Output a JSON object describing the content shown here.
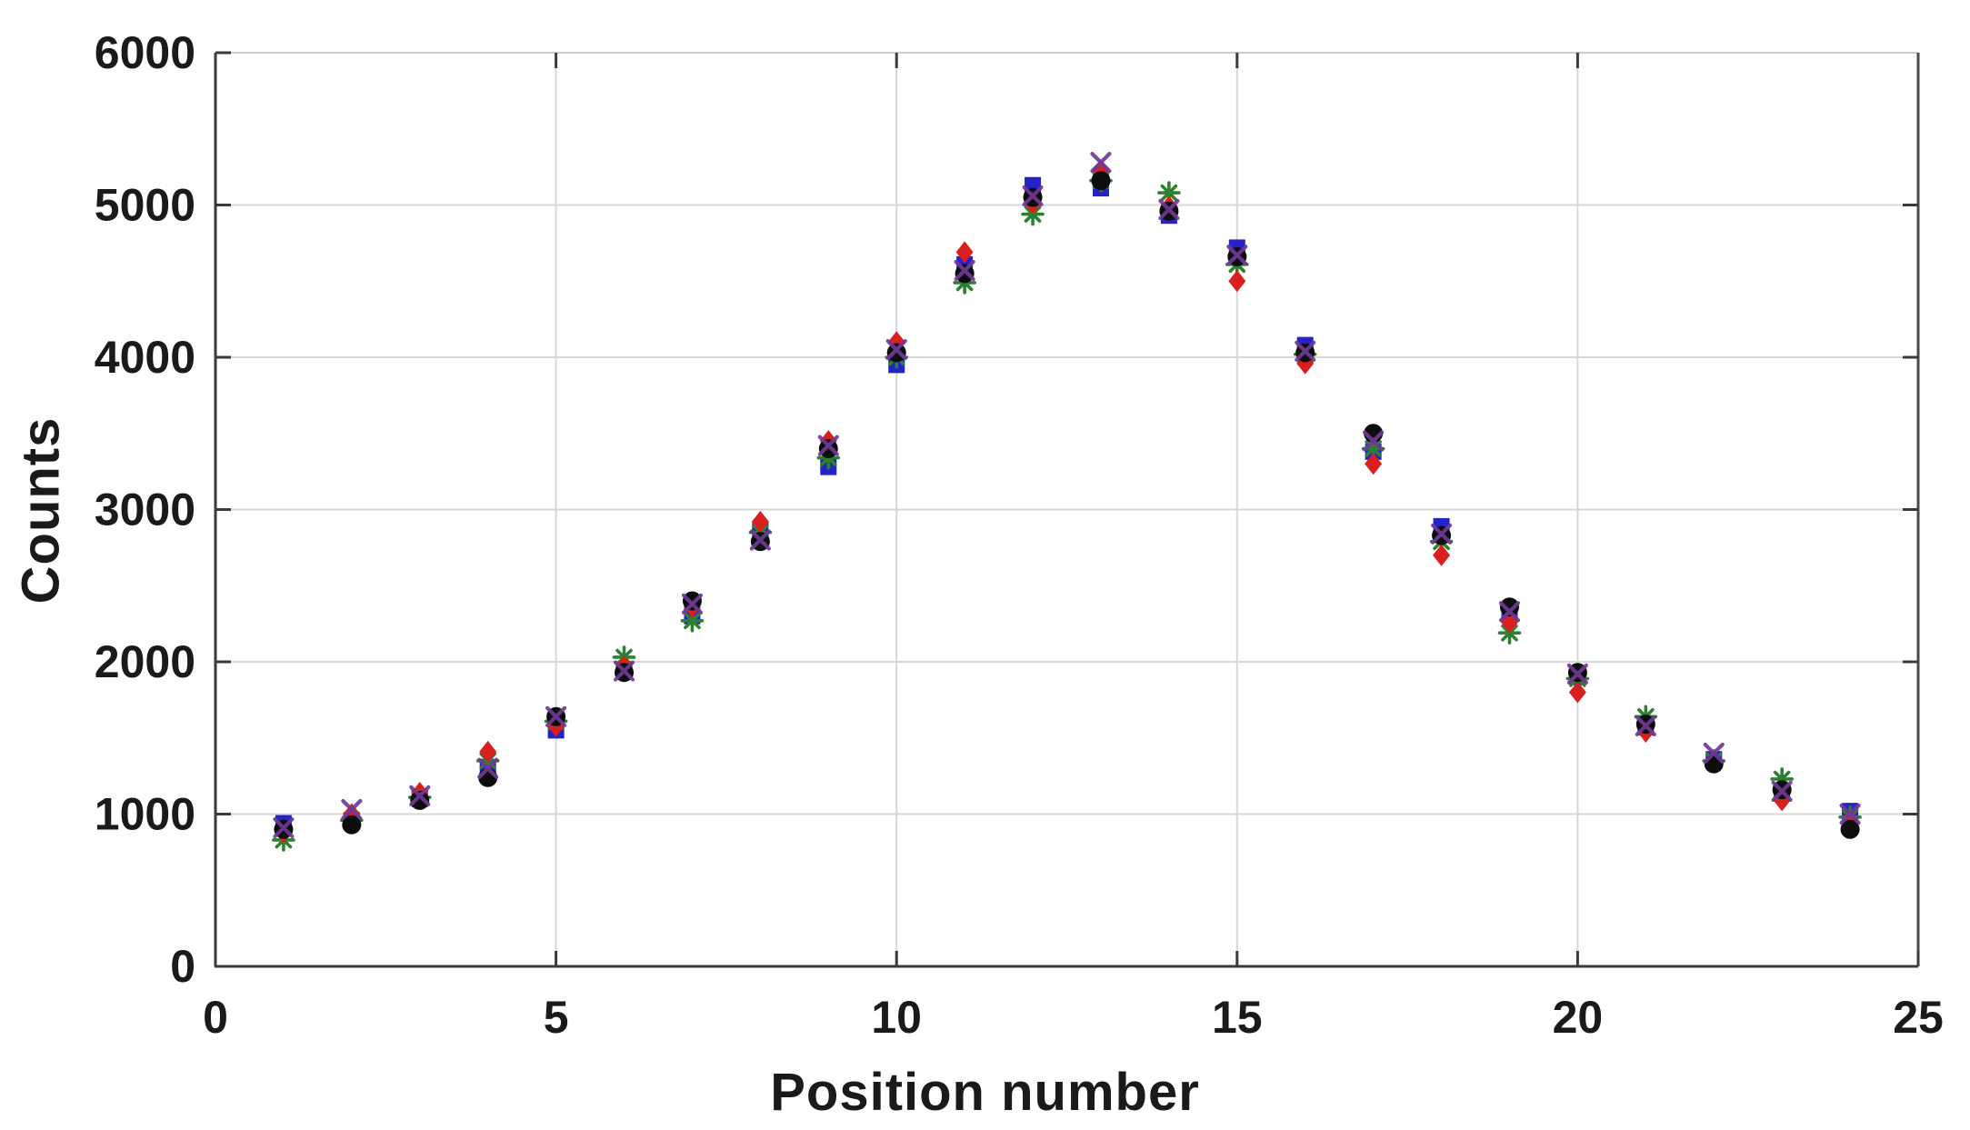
{
  "figure": {
    "background_color": "#ffffff",
    "title": ""
  },
  "chart_data": {
    "type": "scatter",
    "title": "",
    "xlabel": "Position number",
    "ylabel": "Counts",
    "xlim": [
      0,
      25
    ],
    "ylim": [
      0,
      6000
    ],
    "x_ticks": [
      0,
      5,
      10,
      15,
      20,
      25
    ],
    "y_ticks": [
      0,
      1000,
      2000,
      3000,
      4000,
      5000,
      6000
    ],
    "grid": true,
    "legend_position": "none",
    "axis_color": "#3a3a3a",
    "top_spine_color": "#cccccc",
    "grid_color": "#d7d7d7",
    "tick_label_color": "#1a1a1a",
    "x": [
      1,
      2,
      3,
      4,
      5,
      6,
      7,
      8,
      9,
      10,
      11,
      12,
      13,
      14,
      15,
      16,
      17,
      18,
      19,
      20,
      21,
      22,
      23,
      24
    ],
    "series": [
      {
        "name": "series-blue-squares",
        "marker": "square",
        "color": "#2323c8",
        "values": [
          940,
          950,
          1100,
          1310,
          1550,
          1950,
          2300,
          2870,
          3280,
          3950,
          4610,
          5130,
          5110,
          4930,
          4720,
          4080,
          3380,
          2890,
          2320,
          1900,
          1570,
          1360,
          1140,
          1020
        ]
      },
      {
        "name": "series-green-asterisks",
        "marker": "asterisk",
        "color": "#2e8031",
        "values": [
          830,
          960,
          1110,
          1350,
          1610,
          2030,
          2270,
          2850,
          3340,
          4000,
          4490,
          4940,
          5160,
          5080,
          4610,
          4020,
          3400,
          2790,
          2190,
          1890,
          1640,
          1350,
          1230,
          980
        ]
      },
      {
        "name": "series-red-diamonds",
        "marker": "diamond",
        "color": "#d9201f",
        "values": [
          880,
          1000,
          1140,
          1410,
          1580,
          1970,
          2360,
          2920,
          3450,
          4100,
          4690,
          5010,
          5230,
          4990,
          4500,
          3960,
          3300,
          2700,
          2260,
          1800,
          1540,
          1350,
          1090,
          960
        ]
      },
      {
        "name": "series-black-circles",
        "marker": "circle",
        "color": "#0d0d0d",
        "values": [
          900,
          930,
          1090,
          1240,
          1640,
          1930,
          2400,
          2790,
          3400,
          4030,
          4550,
          5050,
          5160,
          4960,
          4660,
          4030,
          3500,
          2830,
          2360,
          1930,
          1590,
          1330,
          1160,
          900
        ]
      },
      {
        "name": "series-purple-x",
        "marker": "x",
        "color": "#6e3a96",
        "values": [
          910,
          1030,
          1120,
          1300,
          1640,
          1940,
          2380,
          2800,
          3420,
          4050,
          4570,
          5060,
          5280,
          4970,
          4670,
          4040,
          3450,
          2840,
          2330,
          1920,
          1580,
          1400,
          1150,
          1000
        ]
      }
    ]
  }
}
